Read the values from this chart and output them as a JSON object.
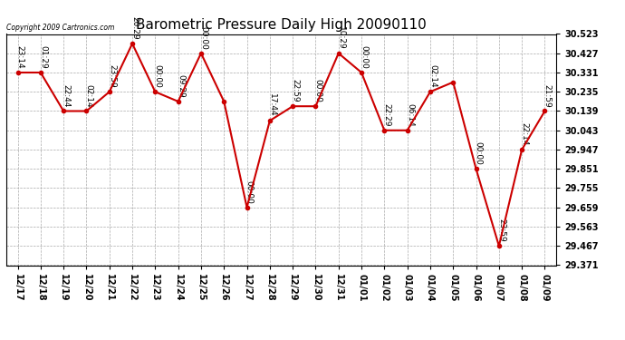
{
  "title": "Barometric Pressure Daily High 20090110",
  "copyright": "Copyright 2009 Cartronics.com",
  "x_labels": [
    "12/17",
    "12/18",
    "12/19",
    "12/20",
    "12/21",
    "12/22",
    "12/23",
    "12/24",
    "12/25",
    "12/26",
    "12/27",
    "12/28",
    "12/29",
    "12/30",
    "12/31",
    "01/01",
    "01/02",
    "01/03",
    "01/04",
    "01/05",
    "01/06",
    "01/07",
    "01/08",
    "01/09"
  ],
  "y_values": [
    30.331,
    30.331,
    30.139,
    30.139,
    30.235,
    30.475,
    30.235,
    30.187,
    30.427,
    30.187,
    29.659,
    30.091,
    30.163,
    30.163,
    30.427,
    30.331,
    30.043,
    30.043,
    30.235,
    30.283,
    29.851,
    29.467,
    29.947,
    30.139
  ],
  "point_labels": [
    "23:14",
    "01:29",
    "22:44",
    "02:14",
    "23:59",
    "20:29",
    "00:00",
    "09:29",
    "00:00",
    "",
    "00:00",
    "17:44",
    "22:59",
    "00:00",
    "10:29",
    "00:00",
    "22:29",
    "06:14",
    "02:14",
    "",
    "00:00",
    "23:59",
    "22:14",
    "21:59"
  ],
  "y_min": 29.371,
  "y_max": 30.523,
  "y_ticks": [
    29.371,
    29.467,
    29.563,
    29.659,
    29.755,
    29.851,
    29.947,
    30.043,
    30.139,
    30.235,
    30.331,
    30.427,
    30.523
  ],
  "line_color": "#cc0000",
  "marker_color": "#cc0000",
  "background_color": "#ffffff",
  "grid_color": "#aaaaaa",
  "title_fontsize": 11,
  "tick_fontsize": 7,
  "annotation_fontsize": 6.5
}
